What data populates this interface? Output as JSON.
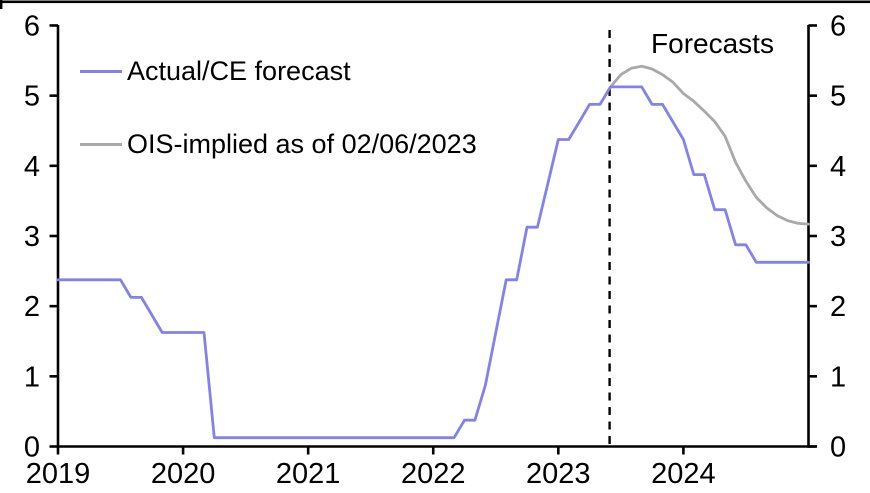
{
  "chart_data": {
    "type": "line",
    "title": "",
    "annotation": {
      "label": "Forecasts"
    },
    "forecast_divider_x": 2023.41,
    "background_color": "#ffffff",
    "axis_color": "#000000",
    "y_axis": {
      "min": 0,
      "max": 6,
      "ticks": [
        0,
        1,
        2,
        3,
        4,
        5,
        6
      ],
      "sides": "both"
    },
    "x_axis": {
      "min": 2019,
      "max": 2025,
      "ticks": [
        {
          "value": 2019,
          "label": "2019"
        },
        {
          "value": 2020,
          "label": "2020"
        },
        {
          "value": 2021,
          "label": "2021"
        },
        {
          "value": 2022,
          "label": "2022"
        },
        {
          "value": 2023,
          "label": "2023"
        },
        {
          "value": 2024,
          "label": "2024"
        }
      ]
    },
    "legend": {
      "items": [
        {
          "label": "Actual/CE forecast",
          "color": "#8282ea"
        },
        {
          "label": "OIS-implied as of 02/06/2023",
          "color": "#a9a9a9"
        }
      ]
    },
    "series": [
      {
        "name": "Actual/CE forecast",
        "color": "#8282ea",
        "points": [
          [
            2019.0,
            2.375
          ],
          [
            2019.083,
            2.375
          ],
          [
            2019.167,
            2.375
          ],
          [
            2019.25,
            2.375
          ],
          [
            2019.333,
            2.375
          ],
          [
            2019.417,
            2.375
          ],
          [
            2019.5,
            2.375
          ],
          [
            2019.583,
            2.125
          ],
          [
            2019.667,
            2.125
          ],
          [
            2019.75,
            1.875
          ],
          [
            2019.833,
            1.625
          ],
          [
            2019.917,
            1.625
          ],
          [
            2020.0,
            1.625
          ],
          [
            2020.083,
            1.625
          ],
          [
            2020.167,
            1.625
          ],
          [
            2020.25,
            0.125
          ],
          [
            2020.333,
            0.125
          ],
          [
            2020.417,
            0.125
          ],
          [
            2020.5,
            0.125
          ],
          [
            2020.583,
            0.125
          ],
          [
            2020.667,
            0.125
          ],
          [
            2020.75,
            0.125
          ],
          [
            2020.833,
            0.125
          ],
          [
            2020.917,
            0.125
          ],
          [
            2021.0,
            0.125
          ],
          [
            2021.083,
            0.125
          ],
          [
            2021.167,
            0.125
          ],
          [
            2021.25,
            0.125
          ],
          [
            2021.333,
            0.125
          ],
          [
            2021.417,
            0.125
          ],
          [
            2021.5,
            0.125
          ],
          [
            2021.583,
            0.125
          ],
          [
            2021.667,
            0.125
          ],
          [
            2021.75,
            0.125
          ],
          [
            2021.833,
            0.125
          ],
          [
            2021.917,
            0.125
          ],
          [
            2022.0,
            0.125
          ],
          [
            2022.083,
            0.125
          ],
          [
            2022.167,
            0.125
          ],
          [
            2022.25,
            0.375
          ],
          [
            2022.333,
            0.375
          ],
          [
            2022.417,
            0.875
          ],
          [
            2022.5,
            1.625
          ],
          [
            2022.583,
            2.375
          ],
          [
            2022.667,
            2.375
          ],
          [
            2022.75,
            3.125
          ],
          [
            2022.833,
            3.125
          ],
          [
            2022.917,
            3.75
          ],
          [
            2023.0,
            4.375
          ],
          [
            2023.083,
            4.375
          ],
          [
            2023.167,
            4.625
          ],
          [
            2023.25,
            4.875
          ],
          [
            2023.333,
            4.875
          ],
          [
            2023.417,
            5.125
          ],
          [
            2023.5,
            5.125
          ],
          [
            2023.583,
            5.125
          ],
          [
            2023.667,
            5.125
          ],
          [
            2023.75,
            4.875
          ],
          [
            2023.833,
            4.875
          ],
          [
            2023.917,
            4.625
          ],
          [
            2024.0,
            4.375
          ],
          [
            2024.083,
            3.875
          ],
          [
            2024.167,
            3.875
          ],
          [
            2024.25,
            3.375
          ],
          [
            2024.333,
            3.375
          ],
          [
            2024.417,
            2.875
          ],
          [
            2024.5,
            2.875
          ],
          [
            2024.583,
            2.625
          ],
          [
            2024.667,
            2.625
          ],
          [
            2024.75,
            2.625
          ],
          [
            2024.833,
            2.625
          ],
          [
            2024.917,
            2.625
          ],
          [
            2025.0,
            2.625
          ]
        ]
      },
      {
        "name": "OIS-implied as of 02/06/2023",
        "color": "#a9a9a9",
        "points": [
          [
            2023.417,
            5.125
          ],
          [
            2023.5,
            5.3
          ],
          [
            2023.583,
            5.39
          ],
          [
            2023.667,
            5.42
          ],
          [
            2023.75,
            5.38
          ],
          [
            2023.833,
            5.3
          ],
          [
            2023.917,
            5.19
          ],
          [
            2024.0,
            5.03
          ],
          [
            2024.083,
            4.92
          ],
          [
            2024.167,
            4.78
          ],
          [
            2024.25,
            4.63
          ],
          [
            2024.333,
            4.42
          ],
          [
            2024.417,
            4.05
          ],
          [
            2024.5,
            3.78
          ],
          [
            2024.583,
            3.55
          ],
          [
            2024.667,
            3.4
          ],
          [
            2024.75,
            3.29
          ],
          [
            2024.833,
            3.22
          ],
          [
            2024.917,
            3.18
          ],
          [
            2025.0,
            3.17
          ]
        ]
      }
    ]
  }
}
